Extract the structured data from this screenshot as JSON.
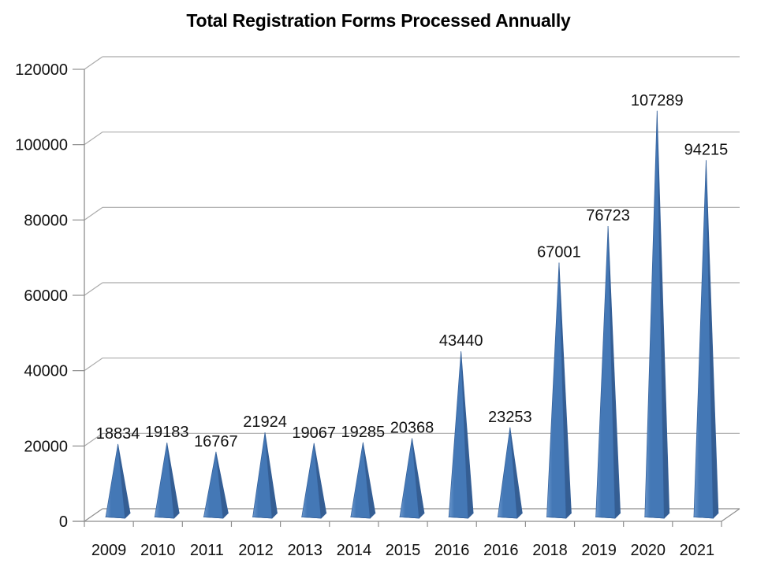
{
  "chart_data": {
    "type": "bar",
    "subtype": "pyramid-3d",
    "title": "Total Registration Forms Processed Annually",
    "categories": [
      "2009",
      "2010",
      "2011",
      "2012",
      "2013",
      "2014",
      "2015",
      "2016",
      "2016",
      "2018",
      "2019",
      "2020",
      "2021"
    ],
    "values": [
      18834,
      19183,
      16767,
      21924,
      19067,
      19285,
      20368,
      43440,
      23253,
      67001,
      76723,
      107289,
      94215
    ],
    "data_labels": [
      "18834",
      "19183",
      "16767",
      "21924",
      "19067",
      "19285",
      "20368",
      "43440",
      "23253",
      "67001",
      "76723",
      "107289",
      "94215"
    ],
    "xlabel": "",
    "ylabel": "",
    "ylim": [
      0,
      120000
    ],
    "y_tick_labels": [
      "0",
      "20000",
      "40000",
      "60000",
      "80000",
      "100000",
      "120000"
    ],
    "y_tick_values": [
      0,
      20000,
      40000,
      60000,
      80000,
      100000,
      120000
    ],
    "grid": true,
    "legend_position": "none",
    "colors": {
      "bar_front_light": "#6a97cd",
      "bar_front": "#4478b6",
      "bar_side": "#355e93",
      "bar_base": "#2b4d79",
      "bar_edge": "#34609a",
      "gridline": "#ababab",
      "axis": "#8e8e8e",
      "text": "#111111",
      "background": "#ffffff"
    }
  }
}
